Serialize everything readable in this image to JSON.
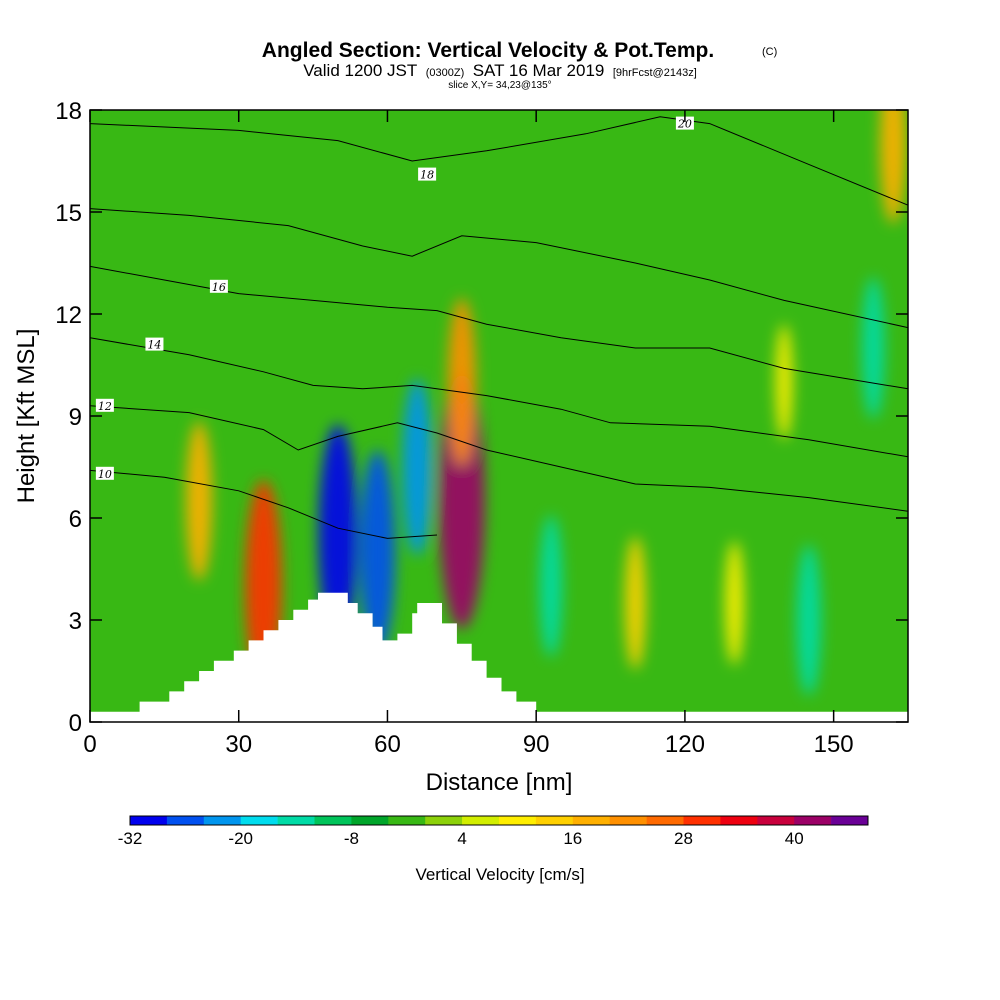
{
  "chart_data": {
    "type": "heatmap",
    "title": "Angled Section: Vertical Velocity & Pot.Temp.",
    "title_mark": "(C)",
    "subtitle": {
      "part1": "Valid 1200 JST",
      "part2": "(0300Z)",
      "part3": "SAT 16 Mar 2019",
      "part4": "[9hrFcst@2143z]"
    },
    "slice_label": "slice X,Y= 34,23@135°",
    "xlabel": "Distance [nm]",
    "ylabel": "Height [Kft MSL]",
    "xlim": [
      0,
      165
    ],
    "ylim": [
      0,
      18
    ],
    "xticks": [
      0,
      30,
      60,
      90,
      120,
      150
    ],
    "yticks": [
      0,
      3,
      6,
      9,
      12,
      15,
      18
    ],
    "colorbar": {
      "label": "Vertical Velocity [cm/s]",
      "tick_labels": [
        "-32",
        "-20",
        "-8",
        "4",
        "16",
        "28",
        "40"
      ],
      "tick_values": [
        -32,
        -20,
        -8,
        4,
        16,
        28,
        40
      ],
      "min": -32,
      "max": 48,
      "step": 4,
      "colors": [
        "#0000ee",
        "#0050f0",
        "#0095ee",
        "#00dcee",
        "#00dba6",
        "#00c45a",
        "#00a52a",
        "#38b814",
        "#8cd10a",
        "#d2ee00",
        "#ffee00",
        "#ffd000",
        "#ffb000",
        "#ff9000",
        "#ff6a00",
        "#ff3000",
        "#ee0010",
        "#c8003c",
        "#9b0066",
        "#6a0096"
      ]
    },
    "vertical_velocity_features": [
      {
        "x": 50,
        "y": 5.5,
        "value": -32
      },
      {
        "x": 58,
        "y": 5,
        "value": -28
      },
      {
        "x": 66,
        "y": 7.5,
        "value": -22
      },
      {
        "x": 75,
        "y": 6.5,
        "value": 40
      },
      {
        "x": 75,
        "y": 10,
        "value": 20
      },
      {
        "x": 35,
        "y": 4,
        "value": 30
      },
      {
        "x": 22,
        "y": 6.5,
        "value": 18
      },
      {
        "x": 93,
        "y": 4,
        "value": -14
      },
      {
        "x": 110,
        "y": 3.5,
        "value": 12
      },
      {
        "x": 130,
        "y": 3.5,
        "value": 10
      },
      {
        "x": 145,
        "y": 3,
        "value": -16
      },
      {
        "x": 162,
        "y": 17,
        "value": 18
      },
      {
        "x": 140,
        "y": 10,
        "value": 8
      },
      {
        "x": 158,
        "y": 11,
        "value": -14
      }
    ],
    "potential_temperature_contours": [
      {
        "label": "10",
        "label_at": [
          3,
          7.3
        ],
        "points": [
          [
            0,
            7.4
          ],
          [
            15,
            7.2
          ],
          [
            30,
            6.8
          ],
          [
            40,
            6.3
          ],
          [
            50,
            5.7
          ],
          [
            60,
            5.4
          ],
          [
            70,
            5.5
          ]
        ]
      },
      {
        "label": "12",
        "label_at": [
          3,
          9.3
        ],
        "points": [
          [
            0,
            9.3
          ],
          [
            20,
            9.1
          ],
          [
            35,
            8.6
          ],
          [
            42,
            8.0
          ],
          [
            50,
            8.4
          ],
          [
            62,
            8.8
          ],
          [
            70,
            8.5
          ],
          [
            80,
            8.0
          ],
          [
            95,
            7.5
          ],
          [
            110,
            7.0
          ],
          [
            125,
            6.9
          ],
          [
            145,
            6.6
          ],
          [
            165,
            6.2
          ]
        ]
      },
      {
        "label": "14",
        "label_at": [
          13,
          11.1
        ],
        "points": [
          [
            0,
            11.3
          ],
          [
            20,
            10.8
          ],
          [
            35,
            10.3
          ],
          [
            45,
            9.9
          ],
          [
            55,
            9.8
          ],
          [
            65,
            9.9
          ],
          [
            80,
            9.6
          ],
          [
            95,
            9.2
          ],
          [
            105,
            8.8
          ],
          [
            125,
            8.7
          ],
          [
            145,
            8.3
          ],
          [
            165,
            7.8
          ]
        ]
      },
      {
        "label": "16",
        "label_at": [
          26,
          12.8
        ],
        "points": [
          [
            0,
            13.4
          ],
          [
            15,
            13.0
          ],
          [
            30,
            12.6
          ],
          [
            45,
            12.4
          ],
          [
            60,
            12.2
          ],
          [
            70,
            12.1
          ],
          [
            80,
            11.7
          ],
          [
            95,
            11.3
          ],
          [
            110,
            11.0
          ],
          [
            125,
            11.0
          ],
          [
            140,
            10.4
          ],
          [
            165,
            9.8
          ]
        ]
      },
      {
        "label": "18",
        "label_at": [
          68,
          16.1
        ],
        "points": [
          [
            0,
            15.1
          ],
          [
            20,
            14.9
          ],
          [
            40,
            14.6
          ],
          [
            55,
            14.0
          ],
          [
            65,
            13.7
          ],
          [
            75,
            14.3
          ],
          [
            90,
            14.1
          ],
          [
            110,
            13.5
          ],
          [
            125,
            13.0
          ],
          [
            140,
            12.4
          ],
          [
            165,
            11.6
          ]
        ]
      },
      {
        "label": "20",
        "label_at": [
          120,
          17.6
        ],
        "points": [
          [
            0,
            17.6
          ],
          [
            30,
            17.4
          ],
          [
            50,
            17.1
          ],
          [
            65,
            16.5
          ],
          [
            80,
            16.8
          ],
          [
            100,
            17.3
          ],
          [
            115,
            17.8
          ],
          [
            125,
            17.6
          ],
          [
            145,
            16.4
          ],
          [
            165,
            15.2
          ]
        ]
      }
    ],
    "terrain_profile": [
      [
        0,
        0.3
      ],
      [
        10,
        0.3
      ],
      [
        10,
        0.6
      ],
      [
        16,
        0.6
      ],
      [
        16,
        0.9
      ],
      [
        19,
        0.9
      ],
      [
        19,
        1.2
      ],
      [
        22,
        1.2
      ],
      [
        22,
        1.5
      ],
      [
        25,
        1.5
      ],
      [
        25,
        1.8
      ],
      [
        29,
        1.8
      ],
      [
        29,
        2.1
      ],
      [
        32,
        2.1
      ],
      [
        32,
        2.4
      ],
      [
        35,
        2.4
      ],
      [
        35,
        2.7
      ],
      [
        38,
        2.7
      ],
      [
        38,
        3.0
      ],
      [
        41,
        3.0
      ],
      [
        41,
        3.3
      ],
      [
        44,
        3.3
      ],
      [
        44,
        3.6
      ],
      [
        46,
        3.6
      ],
      [
        46,
        3.8
      ],
      [
        52,
        3.8
      ],
      [
        52,
        3.5
      ],
      [
        54,
        3.5
      ],
      [
        54,
        3.2
      ],
      [
        57,
        3.2
      ],
      [
        57,
        2.8
      ],
      [
        59,
        2.8
      ],
      [
        59,
        2.4
      ],
      [
        62,
        2.4
      ],
      [
        62,
        2.6
      ],
      [
        65,
        2.6
      ],
      [
        65,
        3.2
      ],
      [
        66,
        3.2
      ],
      [
        66,
        3.5
      ],
      [
        71,
        3.5
      ],
      [
        71,
        2.9
      ],
      [
        74,
        2.9
      ],
      [
        74,
        2.3
      ],
      [
        77,
        2.3
      ],
      [
        77,
        1.8
      ],
      [
        80,
        1.8
      ],
      [
        80,
        1.3
      ],
      [
        83,
        1.3
      ],
      [
        83,
        0.9
      ],
      [
        86,
        0.9
      ],
      [
        86,
        0.6
      ],
      [
        90,
        0.6
      ],
      [
        90,
        0.3
      ],
      [
        165,
        0.3
      ]
    ]
  }
}
